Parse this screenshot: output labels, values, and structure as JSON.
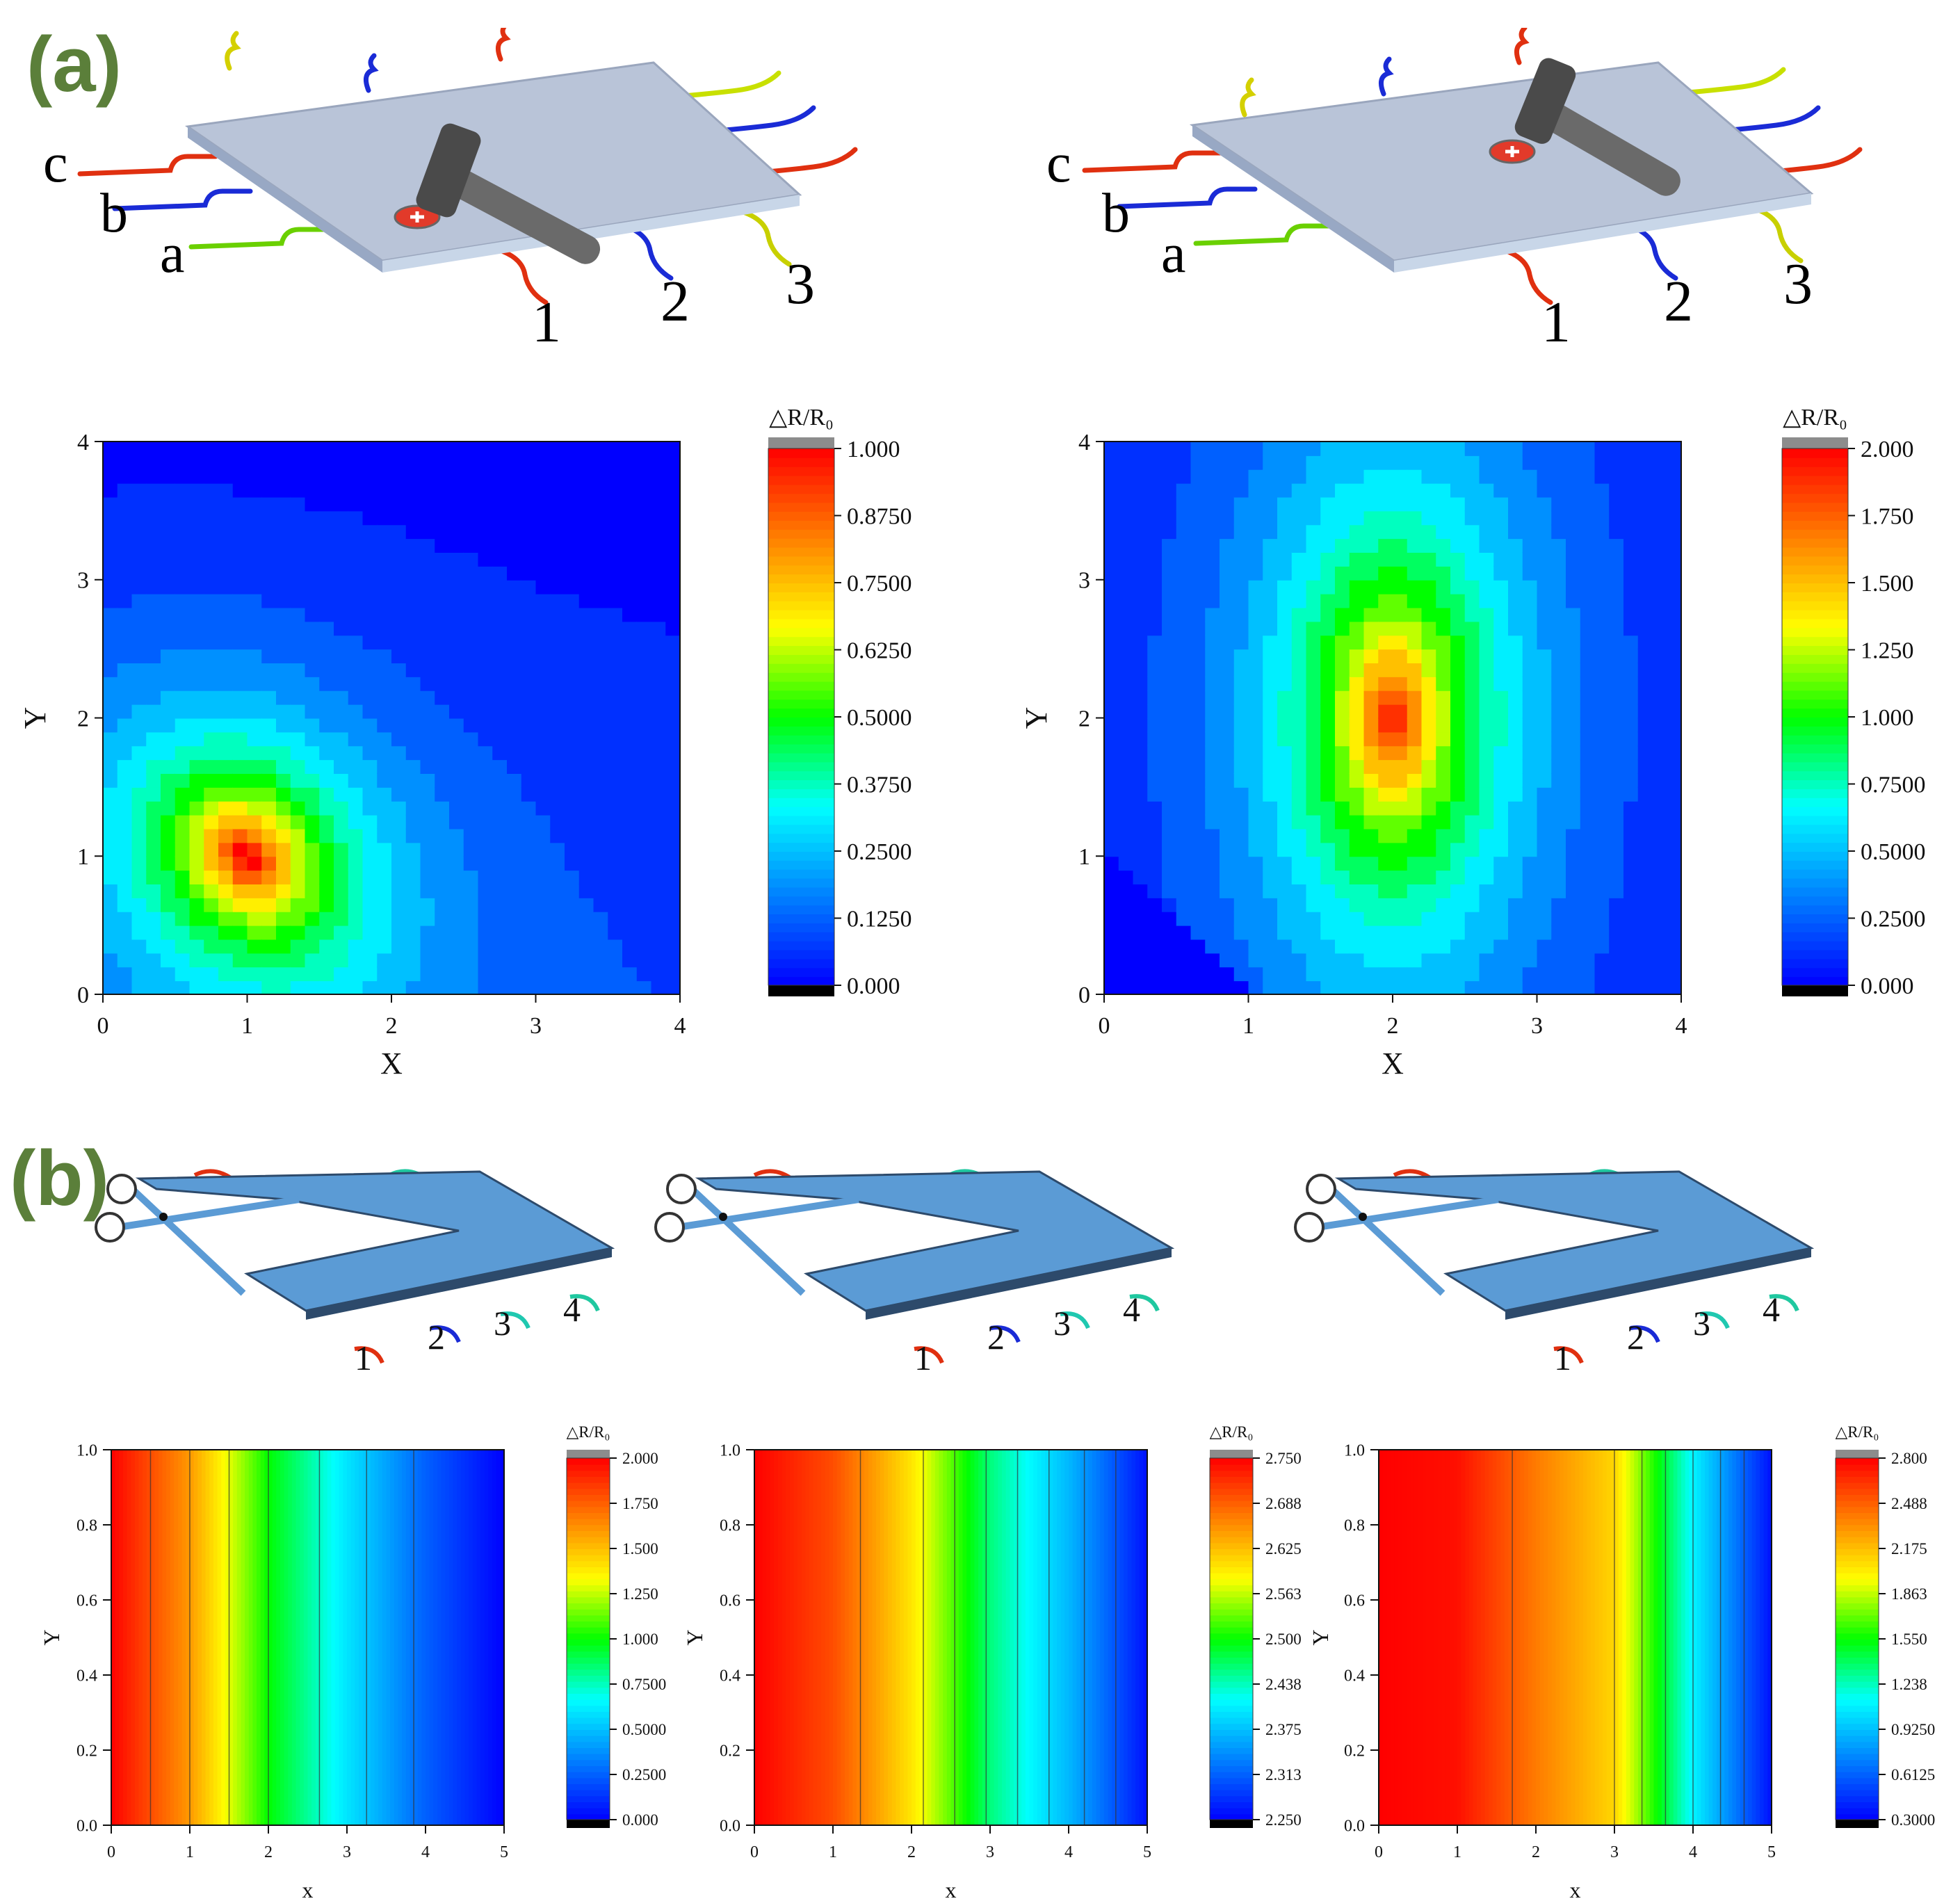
{
  "panels": {
    "a": "(a)",
    "b": "(b)"
  },
  "illustrations": {
    "hammer_1": {
      "row_labels": [
        "c",
        "b",
        "a"
      ],
      "col_labels": [
        "1",
        "2",
        "3"
      ]
    },
    "hammer_2": {
      "row_labels": [
        "c",
        "b",
        "a"
      ],
      "col_labels": [
        "1",
        "2",
        "3"
      ]
    },
    "scissors_1": {
      "col_labels": [
        "1",
        "2",
        "3",
        "4"
      ]
    },
    "scissors_2": {
      "col_labels": [
        "1",
        "2",
        "3",
        "4"
      ]
    },
    "scissors_3": {
      "col_labels": [
        "1",
        "2",
        "3",
        "4"
      ]
    }
  },
  "colors": {
    "scale": [
      "#000000",
      "#0000ff",
      "#0080ff",
      "#00ffff",
      "#00ff00",
      "#ffff00",
      "#ff8000",
      "#ff0000"
    ],
    "overflow": "#8c8c8c",
    "label_green": "#5b7f3a"
  },
  "chart_data": [
    {
      "type": "heatmap",
      "xlabel": "X",
      "ylabel": "Y",
      "x_ticks": [
        "0",
        "1",
        "2",
        "3",
        "4"
      ],
      "y_ticks": [
        "0",
        "1",
        "2",
        "3",
        "4"
      ],
      "xlim": [
        0,
        4
      ],
      "ylim": [
        0,
        4
      ],
      "grid": false,
      "colorbar": {
        "title": "△R/R₀",
        "ticks": [
          "0.000",
          "0.1250",
          "0.2500",
          "0.3750",
          "0.5000",
          "0.6250",
          "0.7500",
          "0.8750",
          "1.000"
        ],
        "range": [
          0,
          1
        ]
      },
      "peak": {
        "x": 1,
        "y": 1,
        "value": 1.0
      },
      "description_values": "maximum near (1,1), decreasing outward"
    },
    {
      "type": "heatmap",
      "xlabel": "X",
      "ylabel": "Y",
      "x_ticks": [
        "0",
        "1",
        "2",
        "3",
        "4"
      ],
      "y_ticks": [
        "0",
        "1",
        "2",
        "3",
        "4"
      ],
      "xlim": [
        0,
        4
      ],
      "ylim": [
        0,
        4
      ],
      "grid": false,
      "colorbar": {
        "title": "△R/R₀",
        "ticks": [
          "0.000",
          "0.2500",
          "0.5000",
          "0.7500",
          "1.000",
          "1.250",
          "1.500",
          "1.750",
          "2.000"
        ],
        "range": [
          0,
          2
        ]
      },
      "peak": {
        "x": 2,
        "y": 2,
        "value": 2.0
      }
    },
    {
      "type": "heatmap",
      "xlabel": "x",
      "ylabel": "Y",
      "x_ticks": [
        "0",
        "1",
        "2",
        "3",
        "4",
        "5"
      ],
      "y_ticks": [
        "0.0",
        "0.2",
        "0.4",
        "0.6",
        "0.8",
        "1.0"
      ],
      "xlim": [
        0,
        5
      ],
      "ylim": [
        0,
        1
      ],
      "colorbar": {
        "title": "△R/R₀",
        "ticks": [
          "0.000",
          "0.2500",
          "0.5000",
          "0.7500",
          "1.000",
          "1.250",
          "1.500",
          "1.750",
          "2.000"
        ],
        "range": [
          0,
          2
        ]
      },
      "profile_x": [
        0,
        1,
        2,
        3,
        4,
        5
      ],
      "profile_values": [
        2.0,
        1.6,
        1.0,
        0.6,
        0.25,
        0.0
      ],
      "contour_x": [
        0.5,
        1.0,
        1.5,
        2.0,
        2.65,
        3.25,
        3.85
      ]
    },
    {
      "type": "heatmap",
      "xlabel": "x",
      "ylabel": "Y",
      "x_ticks": [
        "0",
        "1",
        "2",
        "3",
        "4",
        "5"
      ],
      "y_ticks": [
        "0.0",
        "0.2",
        "0.4",
        "0.6",
        "0.8",
        "1.0"
      ],
      "xlim": [
        0,
        5
      ],
      "ylim": [
        0,
        1
      ],
      "colorbar": {
        "title": "△R/R₀",
        "ticks": [
          "2.250",
          "2.313",
          "2.375",
          "2.438",
          "2.500",
          "2.563",
          "2.625",
          "2.688",
          "2.750"
        ],
        "range": [
          2.25,
          2.75
        ]
      },
      "profile_x": [
        0,
        1,
        2,
        3,
        4,
        5
      ],
      "profile_values": [
        2.75,
        2.7,
        2.6,
        2.46,
        2.37,
        2.26
      ],
      "contour_x": [
        1.35,
        2.15,
        2.55,
        2.95,
        3.35,
        3.75,
        4.2,
        4.6
      ]
    },
    {
      "type": "heatmap",
      "xlabel": "x",
      "ylabel": "Y",
      "x_ticks": [
        "0",
        "1",
        "2",
        "3",
        "4",
        "5"
      ],
      "y_ticks": [
        "0.0",
        "0.2",
        "0.4",
        "0.6",
        "0.8",
        "1.0"
      ],
      "xlim": [
        0,
        5
      ],
      "ylim": [
        0,
        1
      ],
      "colorbar": {
        "title": "△R/R₀",
        "ticks": [
          "0.3000",
          "0.6125",
          "0.9250",
          "1.238",
          "1.550",
          "1.863",
          "2.175",
          "2.488",
          "2.800"
        ],
        "range": [
          0.3,
          2.8
        ]
      },
      "profile_x": [
        0,
        1,
        2,
        3,
        4,
        5
      ],
      "profile_values": [
        2.8,
        2.75,
        2.4,
        2.1,
        1.1,
        0.35
      ],
      "contour_x": [
        1.7,
        3.0,
        3.35,
        3.65,
        4.0,
        4.35,
        4.65
      ]
    }
  ]
}
